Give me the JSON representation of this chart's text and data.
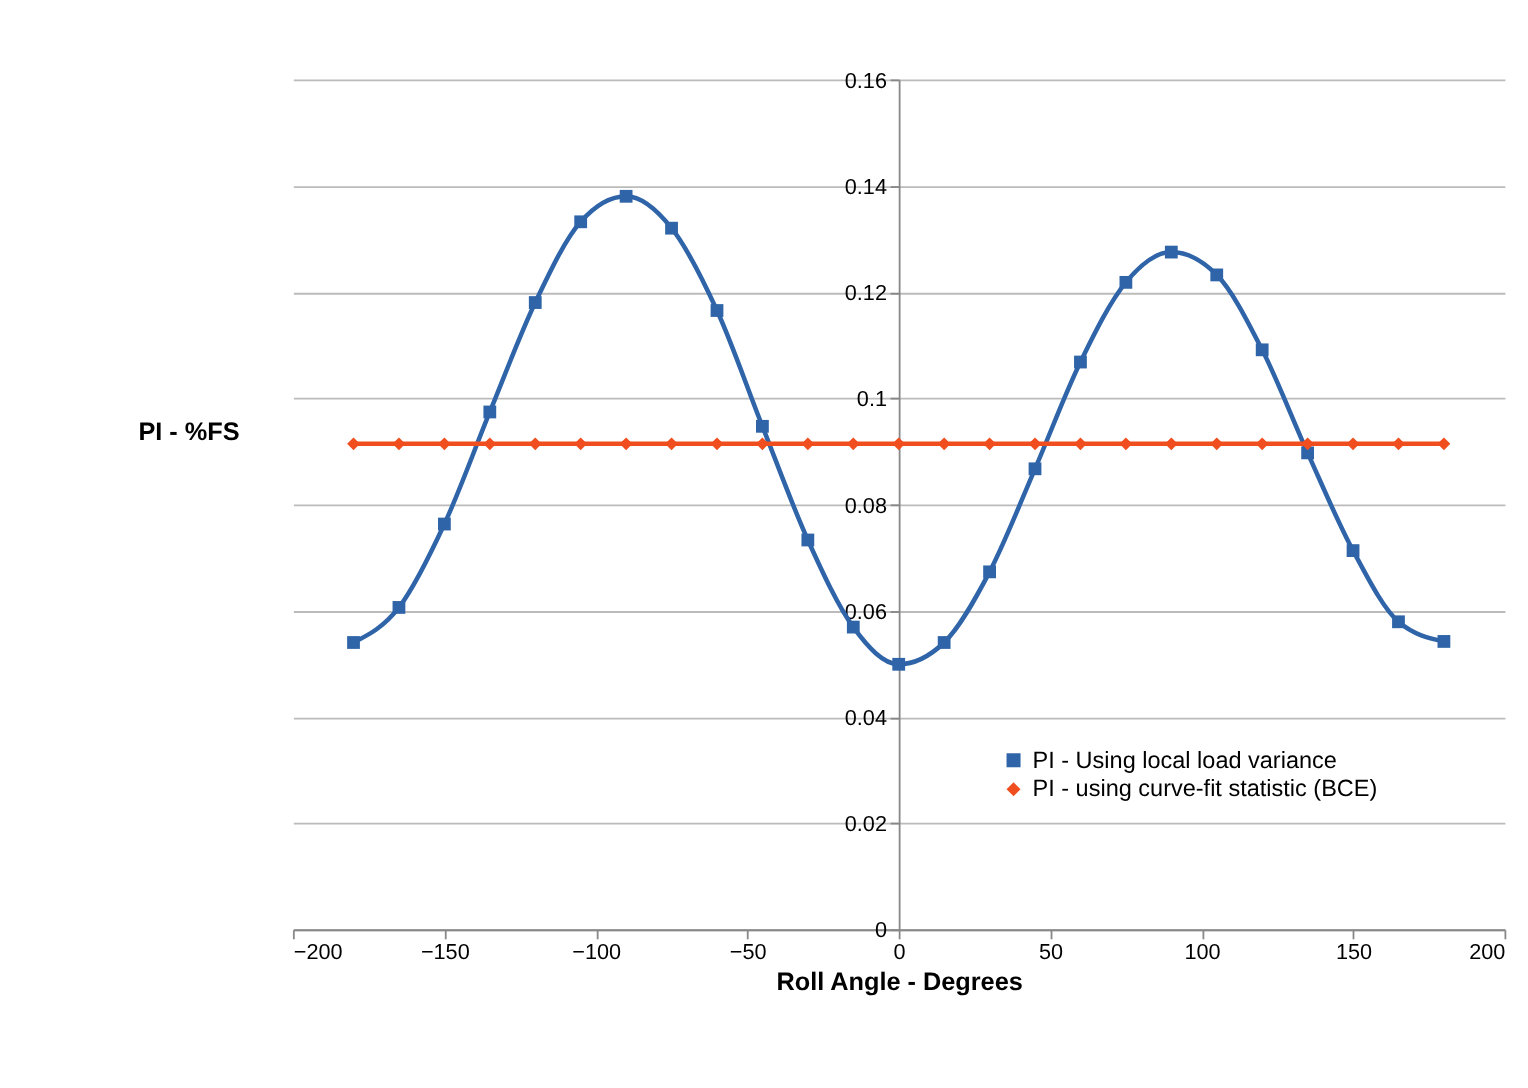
{
  "chart_data": {
    "type": "line",
    "xlabel": "Roll Angle - Degrees",
    "ylabel": "PI - %FS",
    "x": [
      -180,
      -165,
      -150,
      -135,
      -120,
      -105,
      -90,
      -75,
      -60,
      -45,
      -30,
      -15,
      0,
      15,
      30,
      45,
      60,
      75,
      90,
      105,
      120,
      135,
      150,
      165,
      180
    ],
    "series": [
      {
        "name": "PI - Using local load variance",
        "color": "#2f64a8",
        "marker": "square",
        "values": [
          0.054,
          0.0606,
          0.0763,
          0.0974,
          0.118,
          0.1332,
          0.138,
          0.132,
          0.1165,
          0.0947,
          0.0733,
          0.0569,
          0.0499,
          0.054,
          0.0673,
          0.0867,
          0.1068,
          0.1218,
          0.1275,
          0.1232,
          0.1091,
          0.0897,
          0.0713,
          0.0579,
          0.0542
        ]
      },
      {
        "name": "PI - using curve-fit statistic (BCE)",
        "color": "#f04e1e",
        "marker": "diamond",
        "values": [
          0.0914,
          0.0914,
          0.0914,
          0.0914,
          0.0914,
          0.0914,
          0.0914,
          0.0914,
          0.0914,
          0.0914,
          0.0914,
          0.0914,
          0.0914,
          0.0914,
          0.0914,
          0.0914,
          0.0914,
          0.0914,
          0.0914,
          0.0914,
          0.0914,
          0.0914,
          0.0914,
          0.0914,
          0.0914
        ]
      }
    ],
    "xlim": [
      -200,
      200
    ],
    "xticks": [
      -200,
      -150,
      -100,
      -50,
      0,
      50,
      100,
      150,
      200
    ],
    "ylim": [
      0,
      0.16
    ],
    "yticks": [
      0,
      0.02,
      0.04,
      0.06,
      0.08,
      0.1,
      0.12,
      0.14,
      0.16
    ],
    "grid": "y",
    "legend": "bottom right",
    "line_style": "solid"
  }
}
